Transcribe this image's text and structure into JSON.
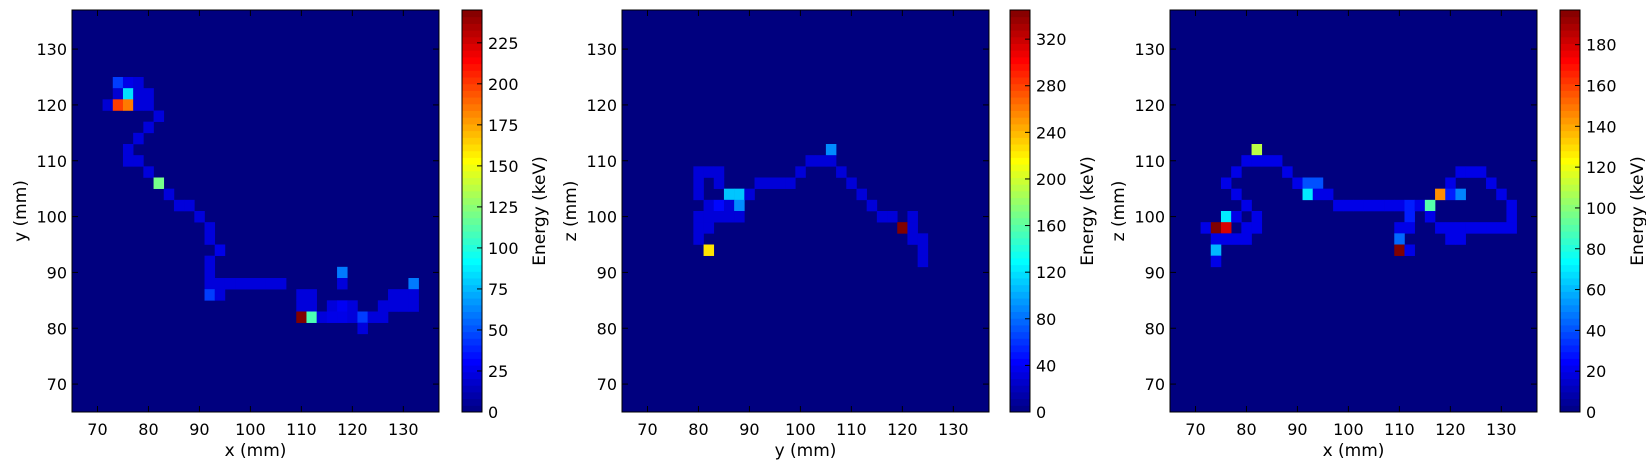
{
  "chart_data": [
    {
      "type": "heatmap",
      "xlabel": "x (mm)",
      "ylabel": "y (mm)",
      "colorbar_label": "Energy (keV)",
      "xlim": [
        65,
        137
      ],
      "ylim": [
        65,
        137
      ],
      "x_ticks": [
        70,
        80,
        90,
        100,
        110,
        120,
        130
      ],
      "y_ticks": [
        70,
        80,
        90,
        100,
        110,
        120,
        130
      ],
      "bin_size_mm": 2,
      "colorbar_range": [
        0,
        245
      ],
      "colorbar_ticks": [
        0,
        25,
        50,
        75,
        100,
        125,
        150,
        175,
        200,
        225
      ],
      "background_color": "#00007f",
      "cells": [
        {
          "x": 74,
          "y": 124,
          "e": 45
        },
        {
          "x": 76,
          "y": 124,
          "e": 25
        },
        {
          "x": 78,
          "y": 124,
          "e": 22
        },
        {
          "x": 74,
          "y": 122,
          "e": 20
        },
        {
          "x": 76,
          "y": 122,
          "e": 85
        },
        {
          "x": 78,
          "y": 122,
          "e": 22
        },
        {
          "x": 80,
          "y": 122,
          "e": 22
        },
        {
          "x": 72,
          "y": 120,
          "e": 20
        },
        {
          "x": 74,
          "y": 120,
          "e": 200
        },
        {
          "x": 76,
          "y": 120,
          "e": 185
        },
        {
          "x": 78,
          "y": 120,
          "e": 22
        },
        {
          "x": 80,
          "y": 120,
          "e": 22
        },
        {
          "x": 82,
          "y": 118,
          "e": 22
        },
        {
          "x": 80,
          "y": 116,
          "e": 22
        },
        {
          "x": 78,
          "y": 114,
          "e": 22
        },
        {
          "x": 76,
          "y": 112,
          "e": 22
        },
        {
          "x": 76,
          "y": 110,
          "e": 22
        },
        {
          "x": 78,
          "y": 110,
          "e": 22
        },
        {
          "x": 80,
          "y": 108,
          "e": 22
        },
        {
          "x": 82,
          "y": 106,
          "e": 120
        },
        {
          "x": 84,
          "y": 104,
          "e": 22
        },
        {
          "x": 86,
          "y": 102,
          "e": 22
        },
        {
          "x": 88,
          "y": 102,
          "e": 22
        },
        {
          "x": 90,
          "y": 100,
          "e": 22
        },
        {
          "x": 92,
          "y": 98,
          "e": 22
        },
        {
          "x": 92,
          "y": 96,
          "e": 22
        },
        {
          "x": 94,
          "y": 94,
          "e": 25
        },
        {
          "x": 92,
          "y": 92,
          "e": 22
        },
        {
          "x": 92,
          "y": 90,
          "e": 22
        },
        {
          "x": 92,
          "y": 88,
          "e": 22
        },
        {
          "x": 94,
          "y": 88,
          "e": 22
        },
        {
          "x": 96,
          "y": 88,
          "e": 22
        },
        {
          "x": 98,
          "y": 88,
          "e": 22
        },
        {
          "x": 100,
          "y": 88,
          "e": 22
        },
        {
          "x": 102,
          "y": 88,
          "e": 22
        },
        {
          "x": 104,
          "y": 88,
          "e": 22
        },
        {
          "x": 106,
          "y": 88,
          "e": 22
        },
        {
          "x": 92,
          "y": 86,
          "e": 45
        },
        {
          "x": 94,
          "y": 86,
          "e": 22
        },
        {
          "x": 110,
          "y": 86,
          "e": 22
        },
        {
          "x": 112,
          "y": 86,
          "e": 22
        },
        {
          "x": 118,
          "y": 90,
          "e": 60
        },
        {
          "x": 118,
          "y": 88,
          "e": 22
        },
        {
          "x": 132,
          "y": 88,
          "e": 60
        },
        {
          "x": 128,
          "y": 86,
          "e": 22
        },
        {
          "x": 130,
          "y": 86,
          "e": 22
        },
        {
          "x": 132,
          "y": 86,
          "e": 22
        },
        {
          "x": 110,
          "y": 84,
          "e": 22
        },
        {
          "x": 112,
          "y": 84,
          "e": 22
        },
        {
          "x": 116,
          "y": 84,
          "e": 22
        },
        {
          "x": 118,
          "y": 84,
          "e": 28
        },
        {
          "x": 120,
          "y": 84,
          "e": 22
        },
        {
          "x": 126,
          "y": 84,
          "e": 22
        },
        {
          "x": 128,
          "y": 84,
          "e": 22
        },
        {
          "x": 130,
          "y": 84,
          "e": 22
        },
        {
          "x": 132,
          "y": 84,
          "e": 22
        },
        {
          "x": 110,
          "y": 82,
          "e": 245
        },
        {
          "x": 112,
          "y": 82,
          "e": 110
        },
        {
          "x": 114,
          "y": 82,
          "e": 22
        },
        {
          "x": 116,
          "y": 82,
          "e": 25
        },
        {
          "x": 118,
          "y": 82,
          "e": 25
        },
        {
          "x": 120,
          "y": 82,
          "e": 22
        },
        {
          "x": 122,
          "y": 82,
          "e": 45
        },
        {
          "x": 124,
          "y": 82,
          "e": 22
        },
        {
          "x": 126,
          "y": 82,
          "e": 22
        },
        {
          "x": 122,
          "y": 80,
          "e": 22
        }
      ]
    },
    {
      "type": "heatmap",
      "xlabel": "y (mm)",
      "ylabel": "z (mm)",
      "colorbar_label": "Energy (keV)",
      "xlim": [
        65,
        137
      ],
      "ylim": [
        65,
        137
      ],
      "x_ticks": [
        70,
        80,
        90,
        100,
        110,
        120,
        130
      ],
      "y_ticks": [
        70,
        80,
        90,
        100,
        110,
        120,
        130
      ],
      "bin_size_mm": 2,
      "colorbar_range": [
        0,
        345
      ],
      "colorbar_ticks": [
        0,
        40,
        80,
        120,
        160,
        200,
        240,
        280,
        320
      ],
      "background_color": "#00007f",
      "cells": [
        {
          "x": 106,
          "y": 112,
          "e": 90
        },
        {
          "x": 102,
          "y": 110,
          "e": 30
        },
        {
          "x": 104,
          "y": 110,
          "e": 30
        },
        {
          "x": 106,
          "y": 110,
          "e": 30
        },
        {
          "x": 100,
          "y": 108,
          "e": 30
        },
        {
          "x": 108,
          "y": 108,
          "e": 30
        },
        {
          "x": 80,
          "y": 108,
          "e": 30
        },
        {
          "x": 82,
          "y": 108,
          "e": 30
        },
        {
          "x": 84,
          "y": 108,
          "e": 30
        },
        {
          "x": 80,
          "y": 106,
          "e": 30
        },
        {
          "x": 84,
          "y": 106,
          "e": 30
        },
        {
          "x": 92,
          "y": 106,
          "e": 30
        },
        {
          "x": 94,
          "y": 106,
          "e": 30
        },
        {
          "x": 96,
          "y": 106,
          "e": 30
        },
        {
          "x": 98,
          "y": 106,
          "e": 30
        },
        {
          "x": 110,
          "y": 106,
          "e": 30
        },
        {
          "x": 80,
          "y": 104,
          "e": 30
        },
        {
          "x": 86,
          "y": 104,
          "e": 110
        },
        {
          "x": 88,
          "y": 104,
          "e": 110
        },
        {
          "x": 90,
          "y": 104,
          "e": 30
        },
        {
          "x": 112,
          "y": 104,
          "e": 30
        },
        {
          "x": 82,
          "y": 102,
          "e": 30
        },
        {
          "x": 84,
          "y": 102,
          "e": 45
        },
        {
          "x": 86,
          "y": 102,
          "e": 30
        },
        {
          "x": 88,
          "y": 102,
          "e": 90
        },
        {
          "x": 114,
          "y": 102,
          "e": 30
        },
        {
          "x": 80,
          "y": 100,
          "e": 30
        },
        {
          "x": 82,
          "y": 100,
          "e": 30
        },
        {
          "x": 84,
          "y": 100,
          "e": 30
        },
        {
          "x": 86,
          "y": 100,
          "e": 30
        },
        {
          "x": 88,
          "y": 100,
          "e": 30
        },
        {
          "x": 116,
          "y": 100,
          "e": 30
        },
        {
          "x": 118,
          "y": 100,
          "e": 30
        },
        {
          "x": 122,
          "y": 100,
          "e": 30
        },
        {
          "x": 80,
          "y": 98,
          "e": 30
        },
        {
          "x": 82,
          "y": 98,
          "e": 30
        },
        {
          "x": 120,
          "y": 98,
          "e": 345
        },
        {
          "x": 122,
          "y": 98,
          "e": 30
        },
        {
          "x": 80,
          "y": 96,
          "e": 30
        },
        {
          "x": 122,
          "y": 96,
          "e": 30
        },
        {
          "x": 124,
          "y": 96,
          "e": 30
        },
        {
          "x": 124,
          "y": 94,
          "e": 30
        },
        {
          "x": 82,
          "y": 94,
          "e": 225
        },
        {
          "x": 124,
          "y": 92,
          "e": 30
        }
      ]
    },
    {
      "type": "heatmap",
      "xlabel": "x (mm)",
      "ylabel": "z (mm)",
      "colorbar_label": "Energy (keV)",
      "xlim": [
        65,
        137
      ],
      "ylim": [
        65,
        137
      ],
      "x_ticks": [
        70,
        80,
        90,
        100,
        110,
        120,
        130
      ],
      "y_ticks": [
        70,
        80,
        90,
        100,
        110,
        120,
        130
      ],
      "bin_size_mm": 2,
      "colorbar_range": [
        0,
        197
      ],
      "colorbar_ticks": [
        0,
        20,
        40,
        60,
        80,
        100,
        120,
        140,
        160,
        180
      ],
      "background_color": "#00007f",
      "cells": [
        {
          "x": 82,
          "y": 112,
          "e": 110
        },
        {
          "x": 80,
          "y": 110,
          "e": 20
        },
        {
          "x": 82,
          "y": 110,
          "e": 20
        },
        {
          "x": 84,
          "y": 110,
          "e": 20
        },
        {
          "x": 86,
          "y": 110,
          "e": 20
        },
        {
          "x": 78,
          "y": 108,
          "e": 20
        },
        {
          "x": 88,
          "y": 108,
          "e": 20
        },
        {
          "x": 122,
          "y": 108,
          "e": 20
        },
        {
          "x": 124,
          "y": 108,
          "e": 20
        },
        {
          "x": 126,
          "y": 108,
          "e": 20
        },
        {
          "x": 76,
          "y": 106,
          "e": 20
        },
        {
          "x": 90,
          "y": 106,
          "e": 20
        },
        {
          "x": 92,
          "y": 106,
          "e": 40
        },
        {
          "x": 94,
          "y": 106,
          "e": 40
        },
        {
          "x": 120,
          "y": 106,
          "e": 20
        },
        {
          "x": 128,
          "y": 106,
          "e": 20
        },
        {
          "x": 78,
          "y": 104,
          "e": 20
        },
        {
          "x": 92,
          "y": 104,
          "e": 70
        },
        {
          "x": 94,
          "y": 104,
          "e": 20
        },
        {
          "x": 96,
          "y": 104,
          "e": 20
        },
        {
          "x": 118,
          "y": 104,
          "e": 145
        },
        {
          "x": 120,
          "y": 104,
          "e": 30
        },
        {
          "x": 122,
          "y": 104,
          "e": 50
        },
        {
          "x": 130,
          "y": 104,
          "e": 20
        },
        {
          "x": 80,
          "y": 102,
          "e": 20
        },
        {
          "x": 98,
          "y": 102,
          "e": 20
        },
        {
          "x": 100,
          "y": 102,
          "e": 20
        },
        {
          "x": 102,
          "y": 102,
          "e": 20
        },
        {
          "x": 104,
          "y": 102,
          "e": 20
        },
        {
          "x": 106,
          "y": 102,
          "e": 20
        },
        {
          "x": 108,
          "y": 102,
          "e": 20
        },
        {
          "x": 110,
          "y": 102,
          "e": 20
        },
        {
          "x": 112,
          "y": 102,
          "e": 30
        },
        {
          "x": 114,
          "y": 102,
          "e": 20
        },
        {
          "x": 116,
          "y": 102,
          "e": 90
        },
        {
          "x": 132,
          "y": 102,
          "e": 20
        },
        {
          "x": 76,
          "y": 100,
          "e": 70
        },
        {
          "x": 78,
          "y": 100,
          "e": 20
        },
        {
          "x": 82,
          "y": 100,
          "e": 20
        },
        {
          "x": 112,
          "y": 100,
          "e": 30
        },
        {
          "x": 116,
          "y": 100,
          "e": 20
        },
        {
          "x": 132,
          "y": 100,
          "e": 20
        },
        {
          "x": 72,
          "y": 98,
          "e": 20
        },
        {
          "x": 74,
          "y": 98,
          "e": 197
        },
        {
          "x": 76,
          "y": 98,
          "e": 180
        },
        {
          "x": 80,
          "y": 98,
          "e": 20
        },
        {
          "x": 82,
          "y": 98,
          "e": 20
        },
        {
          "x": 110,
          "y": 98,
          "e": 20
        },
        {
          "x": 112,
          "y": 98,
          "e": 20
        },
        {
          "x": 118,
          "y": 98,
          "e": 20
        },
        {
          "x": 120,
          "y": 98,
          "e": 20
        },
        {
          "x": 122,
          "y": 98,
          "e": 20
        },
        {
          "x": 124,
          "y": 98,
          "e": 20
        },
        {
          "x": 126,
          "y": 98,
          "e": 20
        },
        {
          "x": 128,
          "y": 98,
          "e": 20
        },
        {
          "x": 130,
          "y": 98,
          "e": 20
        },
        {
          "x": 132,
          "y": 98,
          "e": 20
        },
        {
          "x": 74,
          "y": 96,
          "e": 20
        },
        {
          "x": 76,
          "y": 96,
          "e": 20
        },
        {
          "x": 78,
          "y": 96,
          "e": 20
        },
        {
          "x": 80,
          "y": 96,
          "e": 20
        },
        {
          "x": 110,
          "y": 96,
          "e": 45
        },
        {
          "x": 120,
          "y": 96,
          "e": 20
        },
        {
          "x": 122,
          "y": 96,
          "e": 20
        },
        {
          "x": 74,
          "y": 94,
          "e": 60
        },
        {
          "x": 110,
          "y": 94,
          "e": 197
        },
        {
          "x": 112,
          "y": 94,
          "e": 20
        },
        {
          "x": 74,
          "y": 92,
          "e": 20
        }
      ]
    }
  ]
}
